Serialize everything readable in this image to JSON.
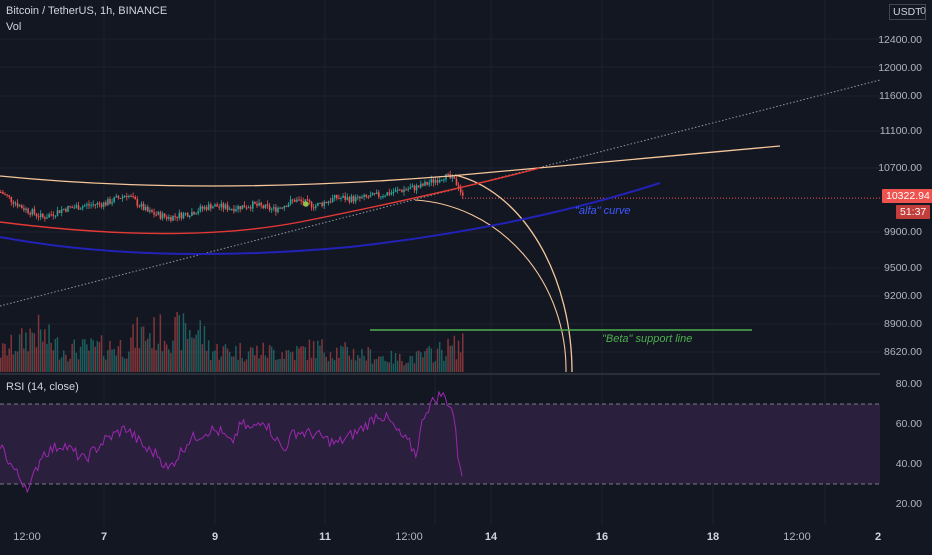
{
  "header": {
    "symbol_line": "Bitcoin / TetherUS, 1h, BINANCE",
    "vol_label": "Vol",
    "rsi_label": "RSI (14, close)",
    "currency_button": "USDT",
    "top_right_digit": "0"
  },
  "price_axis": {
    "ticks": [
      "12400.00",
      "12000.00",
      "11600.00",
      "11100.00",
      "10700.00",
      "9900.00",
      "9500.00",
      "9200.00",
      "8900.00",
      "8620.00"
    ],
    "last_price": "10322.94",
    "countdown": "51:37"
  },
  "rsi_axis": {
    "ticks": [
      "80.00",
      "60.00",
      "40.00",
      "20.00"
    ],
    "upper_band": 70,
    "lower_band": 30
  },
  "time_axis": {
    "ticks": [
      "12:00",
      "7",
      "9",
      "11",
      "12:00",
      "14",
      "16",
      "18",
      "12:00",
      "2"
    ]
  },
  "annotations": {
    "alfa": "\"alfa\" curve",
    "beta": "\"Beta\" support line"
  },
  "colors": {
    "background": "#131722",
    "up": "#26a69a",
    "down": "#ef5350",
    "rsi_line": "#9c27b0",
    "rsi_band": "#2a1f3d",
    "orange_curve": "#f5c69a",
    "red_curve": "#e53935",
    "blue_curve": "#2222b8",
    "green_line": "#4caf50",
    "price_tag": "#ef5350"
  },
  "chart_data": [
    {
      "type": "candlestick",
      "title": "Bitcoin / TetherUS, 1h, BINANCE",
      "ylim": [
        8500,
        12800
      ],
      "price_profile": [
        [
          0,
          10400
        ],
        [
          10,
          10210
        ],
        [
          20,
          10080
        ],
        [
          30,
          10190
        ],
        [
          40,
          10230
        ],
        [
          50,
          10260
        ],
        [
          60,
          10370
        ],
        [
          70,
          10150
        ],
        [
          80,
          10080
        ],
        [
          90,
          10140
        ],
        [
          100,
          10230
        ],
        [
          110,
          10200
        ],
        [
          120,
          10240
        ],
        [
          130,
          10180
        ],
        [
          140,
          10300
        ],
        [
          150,
          10230
        ],
        [
          160,
          10330
        ],
        [
          170,
          10310
        ],
        [
          180,
          10360
        ],
        [
          190,
          10420
        ],
        [
          200,
          10470
        ],
        [
          211,
          10600
        ],
        [
          215,
          10560
        ],
        [
          218,
          10480
        ],
        [
          220,
          10330
        ]
      ],
      "last_price": 10322.94,
      "marker_price": 10250
    },
    {
      "type": "bar",
      "title": "Vol",
      "note": "hourly volume bars, colored by candle direction",
      "relative_height_profile": [
        [
          0,
          0.45
        ],
        [
          10,
          0.7
        ],
        [
          16,
          0.95
        ],
        [
          30,
          0.5
        ],
        [
          60,
          0.6
        ],
        [
          65,
          0.85
        ],
        [
          95,
          0.95
        ],
        [
          100,
          0.5
        ],
        [
          140,
          0.45
        ],
        [
          150,
          0.55
        ],
        [
          190,
          0.3
        ],
        [
          200,
          0.35
        ],
        [
          210,
          0.5
        ],
        [
          218,
          0.6
        ]
      ]
    },
    {
      "type": "line",
      "title": "RSI (14, close)",
      "ylim": [
        20,
        80
      ],
      "values_profile": [
        [
          0,
          50
        ],
        [
          5,
          40
        ],
        [
          10,
          32
        ],
        [
          14,
          28
        ],
        [
          20,
          45
        ],
        [
          30,
          50
        ],
        [
          40,
          42
        ],
        [
          50,
          52
        ],
        [
          60,
          58
        ],
        [
          70,
          47
        ],
        [
          75,
          45
        ],
        [
          80,
          37
        ],
        [
          90,
          52
        ],
        [
          100,
          57
        ],
        [
          105,
          56
        ],
        [
          110,
          50
        ],
        [
          115,
          60
        ],
        [
          120,
          57
        ],
        [
          125,
          63
        ],
        [
          130,
          55
        ],
        [
          135,
          47
        ],
        [
          140,
          56
        ],
        [
          150,
          55
        ],
        [
          160,
          50
        ],
        [
          170,
          56
        ],
        [
          175,
          60
        ],
        [
          180,
          65
        ],
        [
          185,
          62
        ],
        [
          190,
          55
        ],
        [
          195,
          50
        ],
        [
          198,
          45
        ],
        [
          202,
          65
        ],
        [
          205,
          70
        ],
        [
          210,
          75
        ],
        [
          212,
          73
        ],
        [
          214,
          70
        ],
        [
          216,
          65
        ],
        [
          218,
          45
        ],
        [
          220,
          36
        ]
      ]
    }
  ]
}
